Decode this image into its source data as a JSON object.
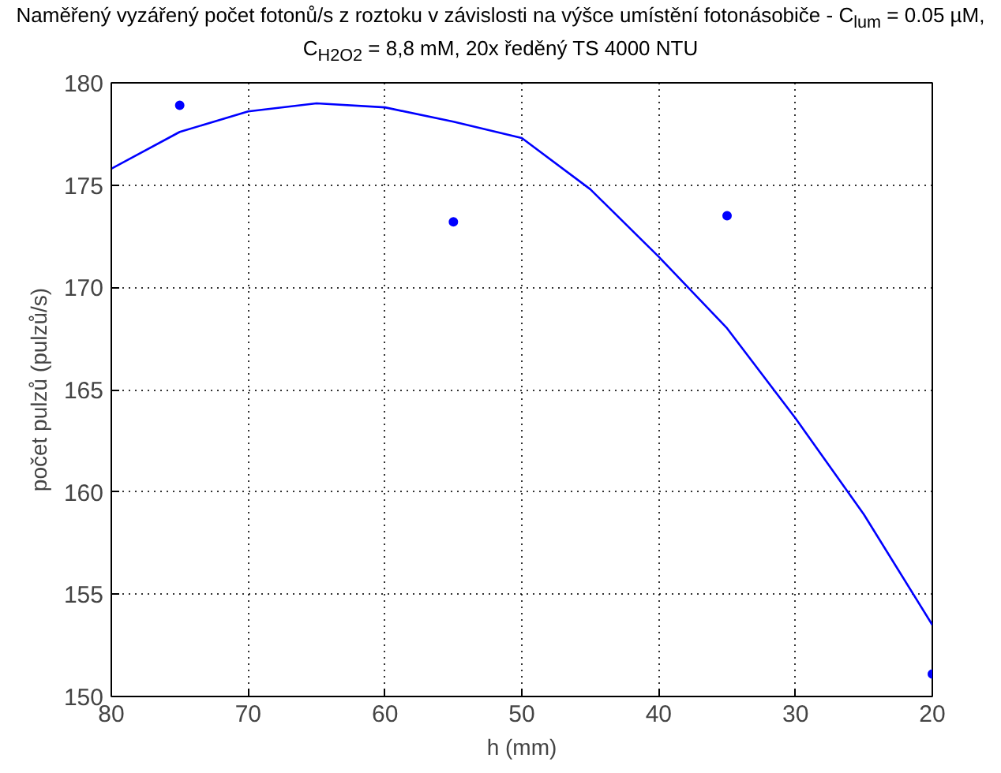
{
  "chart_data": {
    "type": "scatter",
    "title": "Naměřený vyzářený počet fotonů/s z roztoku v závislosti na výšce umístění fotonásobiče - C$_{lum}$ = 0.05 µM, C$_{H2O2}$ = 8,8 mM, 20x ředěný TS 4000 NTU",
    "xlabel": "h (mm)",
    "ylabel": "počet pulzů (pulzů/s)",
    "xlim": [
      80,
      20
    ],
    "ylim": [
      150,
      180
    ],
    "xticks": [
      80,
      70,
      60,
      50,
      40,
      30,
      20
    ],
    "yticks": [
      150,
      155,
      160,
      165,
      170,
      175,
      180
    ],
    "grid": true,
    "series": [
      {
        "color": "#0000ff",
        "x": [
          75,
          55,
          35,
          20
        ],
        "values": [
          178.9,
          173.2,
          173.5,
          151.1
        ],
        "marker": "circle"
      },
      {
        "type": "line",
        "color": "#0000ff",
        "line_style": "solid",
        "x": [
          80,
          75,
          70,
          65,
          60,
          55,
          50,
          45,
          40,
          35,
          30,
          25,
          20
        ],
        "values": [
          175.8,
          177.6,
          178.6,
          179.0,
          178.8,
          178.1,
          177.3,
          174.8,
          171.5,
          168.0,
          163.6,
          158.9,
          153.5
        ]
      }
    ]
  }
}
